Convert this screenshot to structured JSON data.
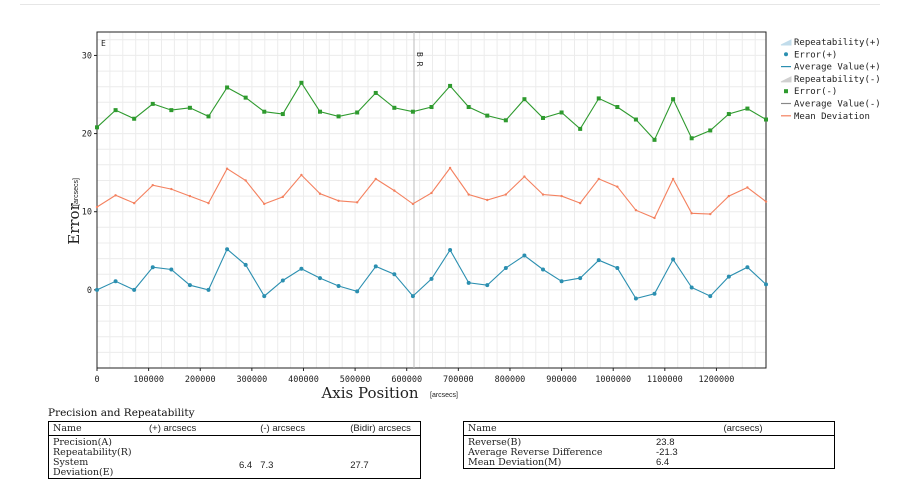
{
  "chart_data": {
    "type": "line",
    "xlabel": "Axis Position",
    "xunit": "[arcsecs]",
    "ylabel": "Error",
    "yunit": "[arcsecs]",
    "xlim": [
      0,
      1296000
    ],
    "ylim": [
      -10,
      33
    ],
    "xticks": [
      0,
      100000,
      200000,
      300000,
      400000,
      500000,
      600000,
      700000,
      800000,
      900000,
      1000000,
      1100000,
      1200000
    ],
    "yticks": [
      0,
      10,
      20,
      30
    ],
    "grid": true,
    "legend_position": "right",
    "legend": [
      "Repeatability(+)",
      "Error(+)",
      "Average Value(+)",
      "Repeatability(-)",
      "Error(-)",
      "Average Value(-)",
      "Mean Deviation"
    ],
    "markers": {
      "corner_label": "E",
      "center_label": "B R"
    },
    "x": [
      0,
      36000,
      72000,
      108000,
      144000,
      180000,
      216000,
      252000,
      288000,
      324000,
      360000,
      396000,
      432000,
      468000,
      504000,
      540000,
      576000,
      612000,
      648000,
      684000,
      720000,
      756000,
      792000,
      828000,
      864000,
      900000,
      936000,
      972000,
      1008000,
      1044000,
      1080000,
      1116000,
      1152000,
      1188000,
      1224000,
      1260000,
      1296000
    ],
    "series": [
      {
        "name": "Error(-)",
        "color": "#2e9a2e",
        "values": [
          20.8,
          23.0,
          21.9,
          23.8,
          23.0,
          23.3,
          22.2,
          25.9,
          24.6,
          22.8,
          22.5,
          26.5,
          22.8,
          22.2,
          22.7,
          25.2,
          23.3,
          22.8,
          23.4,
          26.1,
          23.4,
          22.3,
          21.7,
          24.4,
          22.0,
          22.7,
          20.6,
          24.5,
          23.4,
          21.8,
          19.2,
          24.4,
          19.4,
          20.4,
          22.5,
          23.2,
          21.8
        ]
      },
      {
        "name": "Mean Deviation",
        "color": "#f4815f",
        "values": [
          10.6,
          12.1,
          11.1,
          13.4,
          12.9,
          12.0,
          11.1,
          15.5,
          14.0,
          11.0,
          11.9,
          14.7,
          12.3,
          11.4,
          11.2,
          14.2,
          12.7,
          11.0,
          12.4,
          15.6,
          12.2,
          11.5,
          12.2,
          14.5,
          12.2,
          12.0,
          11.1,
          14.2,
          13.2,
          10.2,
          9.2,
          14.2,
          9.8,
          9.7,
          12.0,
          13.1,
          11.3
        ]
      },
      {
        "name": "Error(+)",
        "color": "#2b8fb0",
        "values": [
          0.0,
          1.1,
          0.0,
          2.9,
          2.6,
          0.6,
          0.0,
          5.2,
          3.2,
          -0.8,
          1.2,
          2.7,
          1.5,
          0.5,
          -0.2,
          3.0,
          2.0,
          -0.8,
          1.4,
          5.1,
          0.9,
          0.6,
          2.8,
          4.4,
          2.6,
          1.1,
          1.5,
          3.8,
          2.8,
          -1.1,
          -0.5,
          3.9,
          0.3,
          -0.8,
          1.7,
          2.9,
          0.7
        ]
      }
    ]
  },
  "precision": {
    "title": "Precision and Repeatability",
    "headers": [
      "Name",
      "(+) arcsecs",
      "(-) arcsecs",
      "(Bidir) arcsecs"
    ],
    "rows": [
      "Precision(A)",
      "Repeatability(R)",
      "System Deviation(E)"
    ],
    "values": [
      "6.4",
      "7.3",
      "27.7"
    ]
  },
  "reverse": {
    "headers": [
      "Name",
      "(arcsecs)"
    ],
    "rows": [
      {
        "name": "Reverse(B)",
        "value": "23.8"
      },
      {
        "name": "Average Reverse Difference",
        "value": "-21.3"
      },
      {
        "name": "Mean Deviation(M)",
        "value": "6.4"
      }
    ]
  }
}
